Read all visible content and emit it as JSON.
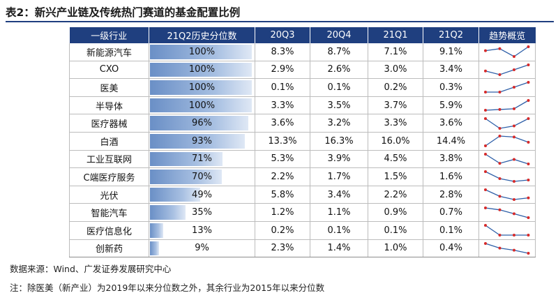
{
  "title": "表2：新兴产业链及传统热门赛道的基金配置比例",
  "headers": [
    "一级行业",
    "21Q2历史分位数",
    "20Q3",
    "20Q4",
    "21Q1",
    "21Q2",
    "趋势概览"
  ],
  "rows": [
    {
      "industry": "新能源汽车",
      "percentile": "100%",
      "percentile_value": 100,
      "q20_3": "8.3%",
      "q20_4": "8.7%",
      "q21_1": "7.1%",
      "q21_2": "9.1%",
      "trend": [
        8.3,
        8.7,
        7.1,
        9.1
      ]
    },
    {
      "industry": "CXO",
      "percentile": "100%",
      "percentile_value": 100,
      "q20_3": "2.9%",
      "q20_4": "2.6%",
      "q21_1": "3.0%",
      "q21_2": "3.4%",
      "trend": [
        2.9,
        2.6,
        3.0,
        3.4
      ]
    },
    {
      "industry": "医美",
      "percentile": "100%",
      "percentile_value": 100,
      "q20_3": "0.1%",
      "q20_4": "0.1%",
      "q21_1": "0.2%",
      "q21_2": "0.3%",
      "trend": [
        0.1,
        0.1,
        0.2,
        0.3
      ]
    },
    {
      "industry": "半导体",
      "percentile": "100%",
      "percentile_value": 100,
      "q20_3": "3.3%",
      "q20_4": "3.5%",
      "q21_1": "3.7%",
      "q21_2": "5.9%",
      "trend": [
        3.3,
        3.5,
        3.7,
        5.9
      ]
    },
    {
      "industry": "医疗器械",
      "percentile": "96%",
      "percentile_value": 96,
      "q20_3": "3.6%",
      "q20_4": "3.2%",
      "q21_1": "3.3%",
      "q21_2": "3.6%",
      "trend": [
        3.6,
        3.2,
        3.3,
        3.6
      ]
    },
    {
      "industry": "白酒",
      "percentile": "93%",
      "percentile_value": 93,
      "q20_3": "13.3%",
      "q20_4": "16.3%",
      "q21_1": "16.0%",
      "q21_2": "14.4%",
      "trend": [
        13.3,
        16.3,
        16.0,
        14.4
      ]
    },
    {
      "industry": "工业互联网",
      "percentile": "71%",
      "percentile_value": 71,
      "q20_3": "5.3%",
      "q20_4": "3.9%",
      "q21_1": "4.5%",
      "q21_2": "3.8%",
      "trend": [
        5.3,
        3.9,
        4.5,
        3.8
      ]
    },
    {
      "industry": "C端医疗服务",
      "percentile": "70%",
      "percentile_value": 70,
      "q20_3": "2.2%",
      "q20_4": "1.7%",
      "q21_1": "1.5%",
      "q21_2": "1.6%",
      "trend": [
        2.2,
        1.7,
        1.5,
        1.6
      ]
    },
    {
      "industry": "光伏",
      "percentile": "49%",
      "percentile_value": 49,
      "q20_3": "5.8%",
      "q20_4": "3.4%",
      "q21_1": "2.2%",
      "q21_2": "2.8%",
      "trend": [
        5.8,
        3.4,
        2.2,
        2.8
      ]
    },
    {
      "industry": "智能汽车",
      "percentile": "35%",
      "percentile_value": 35,
      "q20_3": "1.2%",
      "q20_4": "1.1%",
      "q21_1": "0.9%",
      "q21_2": "0.7%",
      "trend": [
        1.2,
        1.1,
        0.9,
        0.7
      ]
    },
    {
      "industry": "医疗信息化",
      "percentile": "13%",
      "percentile_value": 13,
      "q20_3": "0.2%",
      "q20_4": "0.1%",
      "q21_1": "0.1%",
      "q21_2": "0.1%",
      "trend": [
        0.2,
        0.1,
        0.1,
        0.1
      ]
    },
    {
      "industry": "创新药",
      "percentile": "9%",
      "percentile_value": 9,
      "q20_3": "2.3%",
      "q20_4": "1.4%",
      "q21_1": "1.0%",
      "q21_2": "0.4%",
      "trend": [
        2.3,
        1.4,
        1.0,
        0.4
      ]
    }
  ],
  "source": "数据来源：Wind、广发证券发展研究中心",
  "note": "注：除医美（新产业）为2019年以来分位数之外，其余行业为2015年以来分位数",
  "colors": {
    "header_bg": "#1f3f7f",
    "bar_start": "#6a8fc6",
    "bar_end": "#dfe8f5",
    "trend_line": "#2e5fa8",
    "trend_dot": "#d62a2a"
  }
}
